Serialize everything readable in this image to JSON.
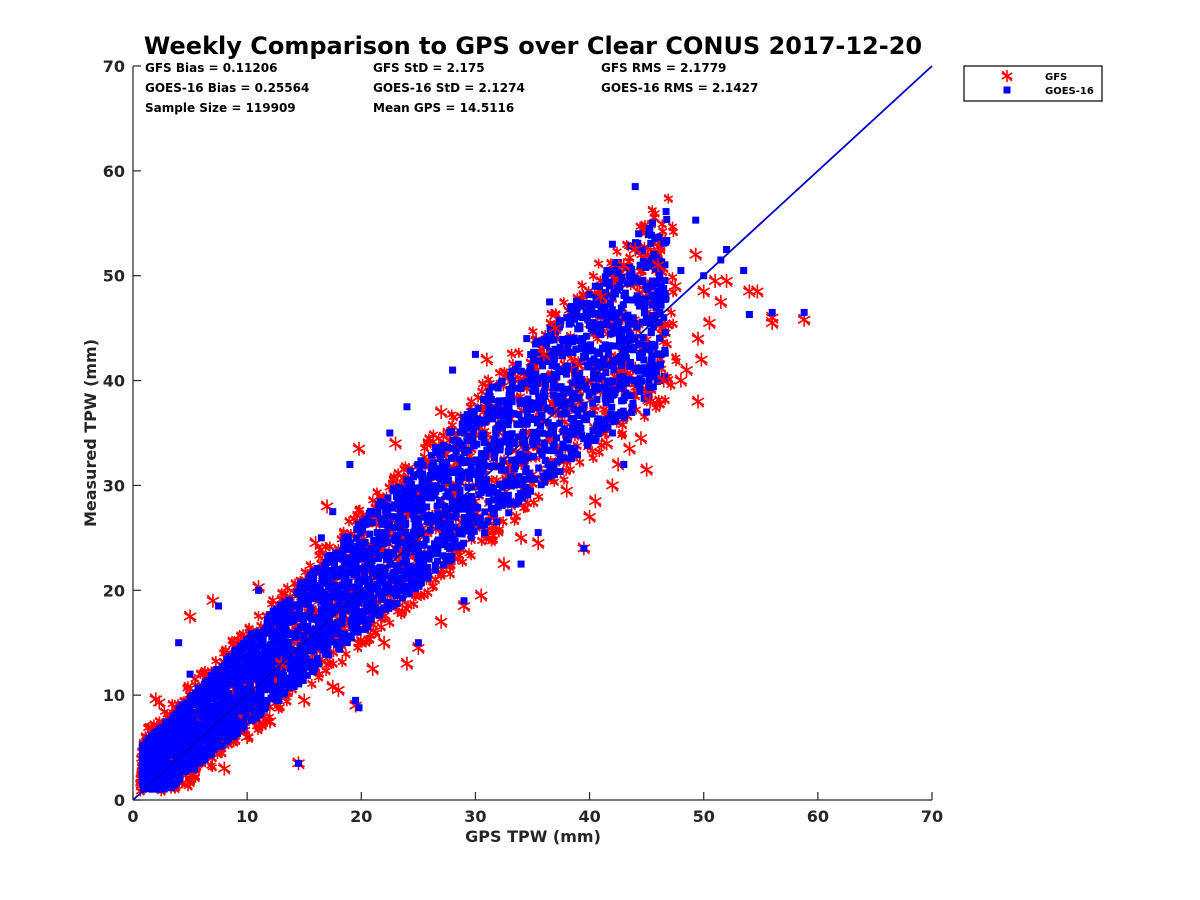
{
  "chart_data": {
    "type": "scatter",
    "title": "Weekly Comparison to GPS over Clear CONUS 2017-12-20",
    "xlabel": "GPS TPW (mm)",
    "ylabel": "Measured TPW (mm)",
    "xlim": [
      0,
      70
    ],
    "ylim": [
      0,
      70
    ],
    "xticks": [
      "0",
      "10",
      "20",
      "30",
      "40",
      "50",
      "60",
      "70"
    ],
    "yticks": [
      "0",
      "10",
      "20",
      "30",
      "40",
      "50",
      "60",
      "70"
    ],
    "grid": false,
    "legend_position": "outside-top-right",
    "stats": [
      [
        "GFS Bias = 0.11206",
        "GFS StD = 2.175",
        "GFS RMS = 2.1779"
      ],
      [
        "GOES-16 Bias = 0.25564",
        "GOES-16 StD = 2.1274",
        "GOES-16 RMS = 2.1427"
      ],
      [
        "Sample Size = 119909",
        "Mean GPS = 14.5116",
        ""
      ]
    ],
    "reference_line": {
      "name": "1:1 line",
      "x": [
        0,
        70
      ],
      "y": [
        0,
        70
      ],
      "color": "#0000cc"
    },
    "series": [
      {
        "name": "GFS",
        "marker": "asterisk",
        "color": "#ff0000",
        "points": [
          [
            2.0,
            9.6
          ],
          [
            2.3,
            9.3
          ],
          [
            5.0,
            17.5
          ],
          [
            7.0,
            19.0
          ],
          [
            11.0,
            20.3
          ],
          [
            13.0,
            13.0
          ],
          [
            14.5,
            3.5
          ],
          [
            16.0,
            24.5
          ],
          [
            17.0,
            28.0
          ],
          [
            17.5,
            10.8
          ],
          [
            19.5,
            9.0
          ],
          [
            19.8,
            33.5
          ],
          [
            21.0,
            12.5
          ],
          [
            23.0,
            34.0
          ],
          [
            24.0,
            13.0
          ],
          [
            25.0,
            14.5
          ],
          [
            27.0,
            17.0
          ],
          [
            27.0,
            37.0
          ],
          [
            29.0,
            18.5
          ],
          [
            30.5,
            19.5
          ],
          [
            31.0,
            42.0
          ],
          [
            32.5,
            22.5
          ],
          [
            34.0,
            25.0
          ],
          [
            35.5,
            24.5
          ],
          [
            36.0,
            42.5
          ],
          [
            37.0,
            45.0
          ],
          [
            38.0,
            29.5
          ],
          [
            39.0,
            41.5
          ],
          [
            39.5,
            24.0
          ],
          [
            40.0,
            27.0
          ],
          [
            40.5,
            28.5
          ],
          [
            41.0,
            48.0
          ],
          [
            41.5,
            34.0
          ],
          [
            42.0,
            30.0
          ],
          [
            42.5,
            32.0
          ],
          [
            43.0,
            51.0
          ],
          [
            43.5,
            33.5
          ],
          [
            44.0,
            52.5
          ],
          [
            44.5,
            34.5
          ],
          [
            45.0,
            31.5
          ],
          [
            45.3,
            38.0
          ],
          [
            46.0,
            51.0
          ],
          [
            46.5,
            40.0
          ],
          [
            47.5,
            49.0
          ],
          [
            48.0,
            40.0
          ],
          [
            48.5,
            41.0
          ],
          [
            49.3,
            52.0
          ],
          [
            49.5,
            44.0
          ],
          [
            49.5,
            38.0
          ],
          [
            49.8,
            42.0
          ],
          [
            50.0,
            48.5
          ],
          [
            50.5,
            45.5
          ],
          [
            51.0,
            49.5
          ],
          [
            51.5,
            47.5
          ],
          [
            52.0,
            49.5
          ],
          [
            54.0,
            48.5
          ],
          [
            54.7,
            48.5
          ],
          [
            56.0,
            45.5
          ],
          [
            56.0,
            46.0
          ],
          [
            58.8,
            45.8
          ],
          [
            8.0,
            3.0
          ],
          [
            10.0,
            6.0
          ],
          [
            12.0,
            7.5
          ],
          [
            15.0,
            9.5
          ],
          [
            18.0,
            10.5
          ],
          [
            22.0,
            15.0
          ]
        ]
      },
      {
        "name": "GOES-16",
        "marker": "square",
        "color": "#0000ff",
        "points": [
          [
            4.0,
            15.0
          ],
          [
            7.5,
            18.5
          ],
          [
            11.0,
            20.0
          ],
          [
            14.5,
            3.5
          ],
          [
            16.5,
            25.0
          ],
          [
            17.5,
            27.5
          ],
          [
            19.0,
            32.0
          ],
          [
            19.5,
            9.5
          ],
          [
            22.5,
            35.0
          ],
          [
            24.0,
            37.5
          ],
          [
            25.0,
            15.0
          ],
          [
            28.0,
            41.0
          ],
          [
            29.0,
            19.0
          ],
          [
            30.0,
            42.5
          ],
          [
            34.0,
            22.5
          ],
          [
            34.5,
            44.0
          ],
          [
            35.5,
            25.5
          ],
          [
            36.5,
            47.5
          ],
          [
            38.0,
            46.0
          ],
          [
            39.5,
            24.0
          ],
          [
            40.5,
            49.0
          ],
          [
            41.0,
            47.0
          ],
          [
            42.0,
            53.0
          ],
          [
            43.5,
            50.0
          ],
          [
            44.0,
            58.5
          ],
          [
            44.3,
            54.0
          ],
          [
            45.0,
            37.0
          ],
          [
            45.5,
            49.5
          ],
          [
            46.5,
            46.0
          ],
          [
            48.0,
            50.5
          ],
          [
            49.3,
            55.3
          ],
          [
            50.0,
            50.0
          ],
          [
            51.5,
            51.5
          ],
          [
            52.0,
            52.5
          ],
          [
            53.5,
            50.5
          ],
          [
            54.0,
            46.3
          ],
          [
            56.0,
            46.5
          ],
          [
            58.8,
            46.5
          ],
          [
            43.0,
            32.0
          ],
          [
            42.0,
            35.0
          ],
          [
            19.8,
            8.8
          ],
          [
            5.0,
            12.0
          ]
        ]
      }
    ]
  }
}
